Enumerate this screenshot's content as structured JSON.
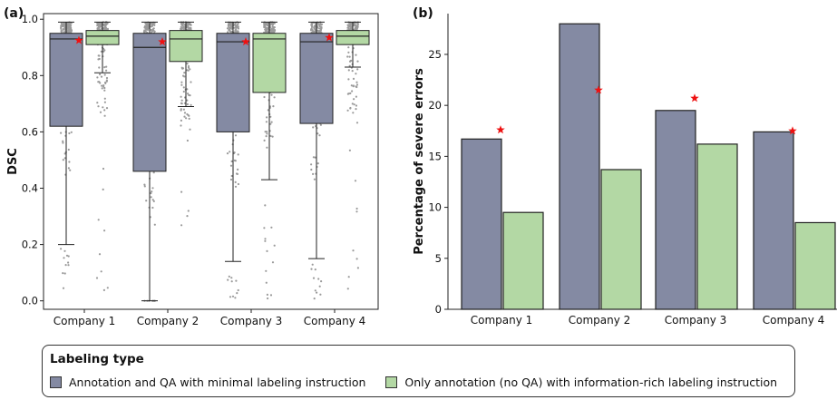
{
  "colors": {
    "group_a": "#848aa3",
    "group_b": "#b3d8a4",
    "points": "#9a9a9a",
    "star": "#ee1111"
  },
  "chart_data": [
    {
      "panel_label": "(a)",
      "type": "box",
      "categories": [
        "Company 1",
        "Company 2",
        "Company 3",
        "Company 4"
      ],
      "ylabel": "DSC",
      "ylim": [
        -0.03,
        1.02
      ],
      "yticks": [
        "0.0",
        "0.2",
        "0.4",
        "0.6",
        "0.8",
        "1.0"
      ],
      "series": [
        {
          "legend_key": "a",
          "boxes": [
            {
              "q1": 0.62,
              "median": 0.93,
              "q3": 0.95,
              "whisker_low": 0.2,
              "whisker_high": 0.99,
              "mean": 0.925
            },
            {
              "q1": 0.46,
              "median": 0.9,
              "q3": 0.95,
              "whisker_low": 0.0,
              "whisker_high": 0.99,
              "mean": 0.92
            },
            {
              "q1": 0.6,
              "median": 0.92,
              "q3": 0.95,
              "whisker_low": 0.14,
              "whisker_high": 0.99,
              "mean": 0.92
            },
            {
              "q1": 0.63,
              "median": 0.92,
              "q3": 0.95,
              "whisker_low": 0.15,
              "whisker_high": 0.99,
              "mean": 0.935
            }
          ]
        },
        {
          "legend_key": "b",
          "boxes": [
            {
              "q1": 0.91,
              "median": 0.94,
              "q3": 0.96,
              "whisker_low": 0.81,
              "whisker_high": 0.99
            },
            {
              "q1": 0.85,
              "median": 0.93,
              "q3": 0.96,
              "whisker_low": 0.69,
              "whisker_high": 0.99
            },
            {
              "q1": 0.74,
              "median": 0.93,
              "q3": 0.95,
              "whisker_low": 0.43,
              "whisker_high": 0.99
            },
            {
              "q1": 0.91,
              "median": 0.94,
              "q3": 0.96,
              "whisker_low": 0.83,
              "whisker_high": 0.99
            }
          ]
        }
      ]
    },
    {
      "panel_label": "(b)",
      "type": "bar",
      "categories": [
        "Company 1",
        "Company 2",
        "Company 3",
        "Company 4"
      ],
      "ylabel": "Percentage of severe errors",
      "ylim": [
        0,
        29
      ],
      "yticks": [
        0,
        5,
        10,
        15,
        20,
        25
      ],
      "series": [
        {
          "legend_key": "a",
          "values": [
            16.7,
            28.0,
            19.5,
            17.4
          ]
        },
        {
          "legend_key": "b",
          "values": [
            9.5,
            13.7,
            16.2,
            8.5
          ]
        }
      ],
      "stars": [
        17.6,
        21.5,
        20.7,
        17.5
      ]
    }
  ],
  "legend": {
    "title": "Labeling type",
    "items": [
      {
        "key": "a",
        "label": "Annotation and QA with minimal labeling instruction"
      },
      {
        "key": "b",
        "label": "Only annotation (no QA) with information-rich labeling instruction"
      }
    ]
  }
}
